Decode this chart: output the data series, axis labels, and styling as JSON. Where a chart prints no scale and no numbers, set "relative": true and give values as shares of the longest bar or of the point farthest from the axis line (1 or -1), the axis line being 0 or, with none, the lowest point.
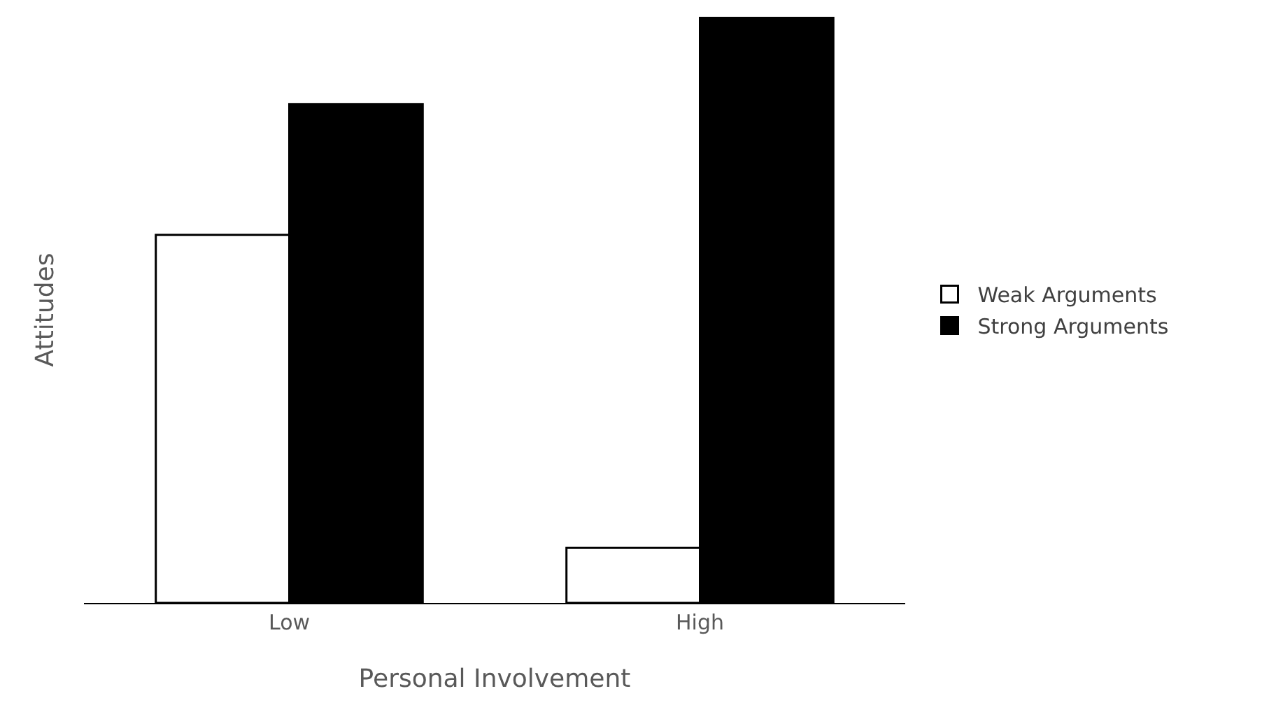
{
  "chart_data": {
    "type": "bar",
    "xlabel": "Personal Involvement",
    "ylabel": "Attitudes",
    "categories": [
      "Low",
      "High"
    ],
    "relative": true,
    "legend": "right",
    "series": [
      {
        "name": "Weak Arguments",
        "color": "#ffffff",
        "values": [
          0.628,
          0.094
        ]
      },
      {
        "name": "Strong Arguments",
        "color": "#000000",
        "values": [
          0.851,
          1
        ]
      }
    ]
  }
}
